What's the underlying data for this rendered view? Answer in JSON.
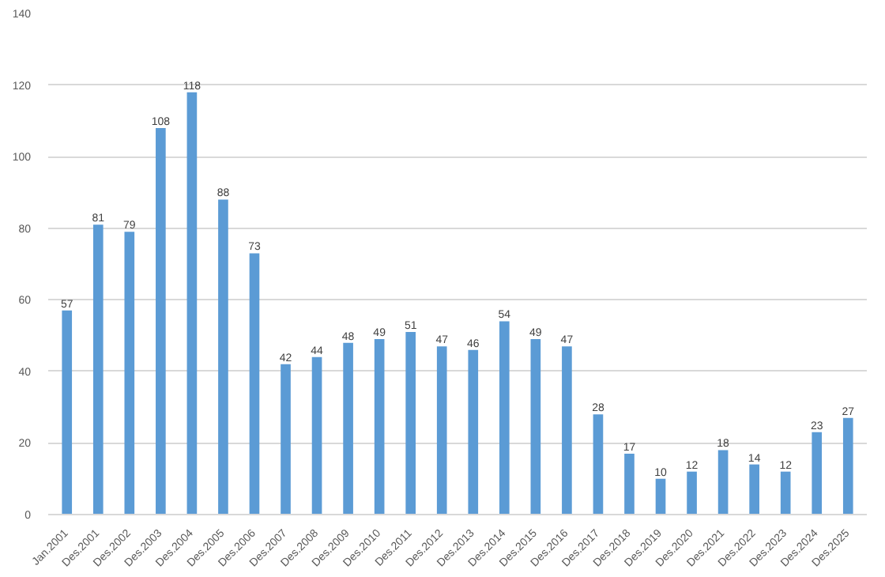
{
  "chart_data": {
    "type": "bar",
    "categories": [
      "Jan.2001",
      "Des.2001",
      "Des.2002",
      "Des.2003",
      "Des.2004",
      "Des.2005",
      "Des.2006",
      "Des.2007",
      "Des.2008",
      "Des.2009",
      "Des.2010",
      "Des.2011",
      "Des.2012",
      "Des.2013",
      "Des.2014",
      "Des.2015",
      "Des.2016",
      "Des.2017",
      "Des.2018",
      "Des.2019",
      "Des.2020",
      "Des.2021",
      "Des.2022",
      "Des.2023",
      "Des.2024",
      "Des.2025"
    ],
    "values": [
      57,
      81,
      79,
      108,
      118,
      88,
      73,
      42,
      44,
      48,
      49,
      51,
      47,
      46,
      54,
      49,
      47,
      28,
      17,
      10,
      12,
      18,
      14,
      12,
      23,
      27
    ],
    "color": "#5b9bd5",
    "ylim": [
      0,
      140
    ],
    "yticks": [
      0,
      20,
      40,
      60,
      80,
      100,
      120,
      140
    ],
    "grid": "y",
    "data_labels": true
  }
}
